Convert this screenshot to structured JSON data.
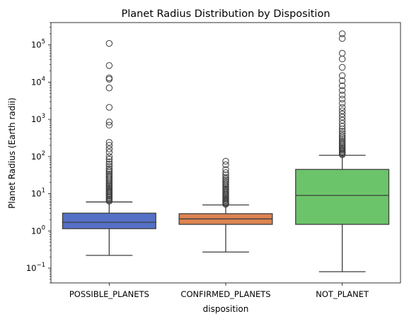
{
  "chart_data": {
    "type": "box",
    "title": "Planet Radius Distribution by Disposition",
    "xlabel": "disposition",
    "ylabel": "Planet Radius (Earth radii)",
    "yscale": "log",
    "ylim": [
      0.04,
      400000
    ],
    "yticks": [
      {
        "value": 0.1,
        "base": "10",
        "exp": "−1"
      },
      {
        "value": 1,
        "base": "10",
        "exp": "0"
      },
      {
        "value": 10,
        "base": "10",
        "exp": "1"
      },
      {
        "value": 100,
        "base": "10",
        "exp": "2"
      },
      {
        "value": 1000,
        "base": "10",
        "exp": "3"
      },
      {
        "value": 10000,
        "base": "10",
        "exp": "4"
      },
      {
        "value": 100000,
        "base": "10",
        "exp": "5"
      }
    ],
    "grid": false,
    "categories": [
      "POSSIBLE_PLANETS",
      "CONFIRMED_PLANETS",
      "NOT_PLANET"
    ],
    "boxes": [
      {
        "category": "POSSIBLE_PLANETS",
        "color": "#5470c6",
        "whisker_low": 0.22,
        "q1": 1.15,
        "median": 1.7,
        "q3": 3.0,
        "whisker_high": 6.0,
        "fliers": [
          6.3,
          6.7,
          7.1,
          7.6,
          8.1,
          8.7,
          9.3,
          10,
          10.8,
          11.6,
          12.5,
          13.5,
          14.6,
          15.8,
          17,
          18.5,
          20,
          22,
          24,
          26,
          28.5,
          31,
          34,
          38,
          42,
          47,
          55,
          63,
          72,
          85,
          100,
          130,
          160,
          200,
          240,
          700,
          850,
          2100,
          7000,
          12000,
          13000,
          28000,
          110000
        ]
      },
      {
        "category": "CONFIRMED_PLANETS",
        "color": "#dd8452",
        "whisker_low": 0.27,
        "q1": 1.5,
        "median": 2.1,
        "q3": 2.9,
        "whisker_high": 5.0,
        "fliers": [
          5.2,
          5.5,
          5.8,
          6.1,
          6.5,
          6.9,
          7.3,
          7.8,
          8.3,
          8.9,
          9.5,
          10.2,
          11,
          11.8,
          12.7,
          13.7,
          14.8,
          16,
          17.5,
          19,
          21,
          23,
          25,
          28,
          32,
          37,
          45,
          60,
          75
        ]
      },
      {
        "category": "NOT_PLANET",
        "color": "#6cc46a",
        "whisker_low": 0.08,
        "q1": 1.5,
        "median": 9.0,
        "q3": 45,
        "whisker_high": 108,
        "fliers": [
          112,
          118,
          125,
          133,
          142,
          152,
          163,
          175,
          190,
          205,
          225,
          245,
          270,
          300,
          330,
          370,
          420,
          480,
          550,
          650,
          780,
          950,
          1150,
          1400,
          1700,
          2100,
          2700,
          3500,
          4500,
          6000,
          8000,
          11000,
          15000,
          25000,
          42000,
          60000,
          150000,
          200000
        ]
      }
    ]
  }
}
